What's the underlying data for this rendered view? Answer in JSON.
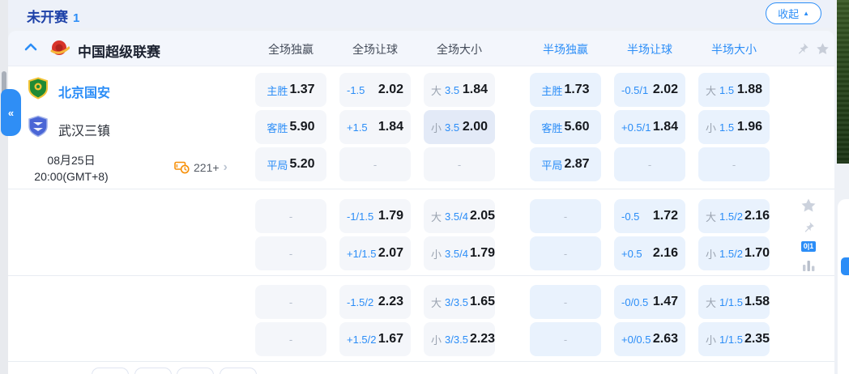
{
  "topbar": {
    "status_label": "未开赛",
    "status_count": "1",
    "collapse_label": "收起"
  },
  "league_header": {
    "name": "中国超级联赛",
    "columns": [
      {
        "label": "全场独赢",
        "scope": "full"
      },
      {
        "label": "全场让球",
        "scope": "full"
      },
      {
        "label": "全场大小",
        "scope": "full"
      },
      {
        "label": "半场独赢",
        "scope": "half"
      },
      {
        "label": "半场让球",
        "scope": "half"
      },
      {
        "label": "半场大小",
        "scope": "half"
      }
    ]
  },
  "match": {
    "home_team": "北京国安",
    "away_team": "武汉三镇",
    "date": "08月25日",
    "time": "20:00(GMT+8)",
    "more_markets_count": "221+"
  },
  "odds": {
    "blocks": [
      {
        "rows": [
          [
            {
              "l": "主胜",
              "v": "1.37"
            },
            {
              "l": "-1.5",
              "v": "2.02"
            },
            {
              "p": "大",
              "l": "3.5",
              "v": "1.84"
            },
            {
              "l": "主胜",
              "v": "1.73"
            },
            {
              "l": "-0.5/1",
              "v": "2.02"
            },
            {
              "p": "大",
              "l": "1.5",
              "v": "1.88"
            }
          ],
          [
            {
              "l": "客胜",
              "v": "5.90"
            },
            {
              "l": "+1.5",
              "v": "1.84"
            },
            {
              "p": "小",
              "l": "3.5",
              "v": "2.00",
              "hl": true
            },
            {
              "l": "客胜",
              "v": "5.60"
            },
            {
              "l": "+0.5/1",
              "v": "1.84"
            },
            {
              "p": "小",
              "l": "1.5",
              "v": "1.96"
            }
          ],
          [
            {
              "l": "平局",
              "v": "5.20"
            },
            {
              "dash": true
            },
            {
              "dash": true
            },
            {
              "l": "平局",
              "v": "2.87"
            },
            {
              "dash": true
            },
            {
              "dash": true
            }
          ]
        ]
      },
      {
        "rows": [
          [
            {
              "dash": true
            },
            {
              "l": "-1/1.5",
              "v": "1.79"
            },
            {
              "p": "大",
              "l": "3.5/4",
              "v": "2.05"
            },
            {
              "dash": true
            },
            {
              "l": "-0.5",
              "v": "1.72"
            },
            {
              "p": "大",
              "l": "1.5/2",
              "v": "2.16"
            }
          ],
          [
            {
              "dash": true
            },
            {
              "l": "+1/1.5",
              "v": "2.07"
            },
            {
              "p": "小",
              "l": "3.5/4",
              "v": "1.79"
            },
            {
              "dash": true
            },
            {
              "l": "+0.5",
              "v": "2.16"
            },
            {
              "p": "小",
              "l": "1.5/2",
              "v": "1.70"
            }
          ]
        ]
      },
      {
        "rows": [
          [
            {
              "dash": true
            },
            {
              "l": "-1.5/2",
              "v": "2.23"
            },
            {
              "p": "大",
              "l": "3/3.5",
              "v": "1.65"
            },
            {
              "dash": true
            },
            {
              "l": "-0/0.5",
              "v": "1.47"
            },
            {
              "p": "大",
              "l": "1/1.5",
              "v": "1.58"
            }
          ],
          [
            {
              "dash": true
            },
            {
              "l": "+1.5/2",
              "v": "1.67"
            },
            {
              "p": "小",
              "l": "3/3.5",
              "v": "2.23"
            },
            {
              "dash": true
            },
            {
              "l": "+0/0.5",
              "v": "2.63"
            },
            {
              "p": "小",
              "l": "1/1.5",
              "v": "2.35"
            }
          ]
        ]
      }
    ]
  },
  "side_rail": {
    "score_badge": "0|1"
  },
  "colors": {
    "accent": "#2b8df7",
    "status_text": "#1d41a8",
    "odds_text": "#15181d",
    "full_cell_bg": "#f4f6fa",
    "half_cell_bg": "#e9f2fd",
    "highlight_cell_bg": "#e3eaf7",
    "markets_icon": "#f79009"
  }
}
